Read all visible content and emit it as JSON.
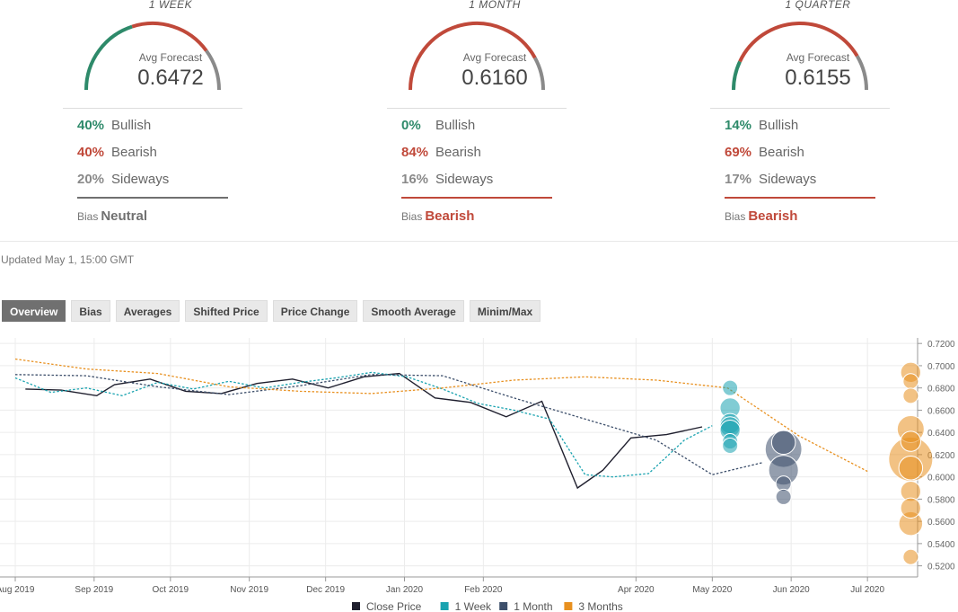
{
  "panels": [
    {
      "title": "1 WEEK",
      "avg_label": "Avg Forecast",
      "avg_value": "0.6472",
      "bullish_pct": "40%",
      "bullish_label": "Bullish",
      "bearish_pct": "40%",
      "bearish_label": "Bearish",
      "sideways_pct": "20%",
      "sideways_label": "Sideways",
      "bias_label": "Bias",
      "bias_value": "Neutral",
      "bias_color": "#707070",
      "gauge": {
        "bullish": 0.4,
        "bearish": 0.4,
        "sideways": 0.2
      }
    },
    {
      "title": "1 MONTH",
      "avg_label": "Avg Forecast",
      "avg_value": "0.6160",
      "bullish_pct": "0%",
      "bullish_label": "Bullish",
      "bearish_pct": "84%",
      "bearish_label": "Bearish",
      "sideways_pct": "16%",
      "sideways_label": "Sideways",
      "bias_label": "Bias",
      "bias_value": "Bearish",
      "bias_color": "#c0493a",
      "gauge": {
        "bullish": 0.0,
        "bearish": 0.84,
        "sideways": 0.16
      }
    },
    {
      "title": "1 QUARTER",
      "avg_label": "Avg Forecast",
      "avg_value": "0.6155",
      "bullish_pct": "14%",
      "bullish_label": "Bullish",
      "bearish_pct": "69%",
      "bearish_label": "Bearish",
      "sideways_pct": "17%",
      "sideways_label": "Sideways",
      "bias_label": "Bias",
      "bias_value": "Bearish",
      "bias_color": "#c0493a",
      "gauge": {
        "bullish": 0.14,
        "bearish": 0.69,
        "sideways": 0.17
      }
    }
  ],
  "colors": {
    "bullish": "#2e8a6a",
    "bearish": "#c0493a",
    "sideways": "#8a8a8a"
  },
  "updated": "Updated May 1, 15:00 GMT",
  "tabs": [
    "Overview",
    "Bias",
    "Averages",
    "Shifted Price",
    "Price Change",
    "Smooth Average",
    "Minim/Max"
  ],
  "active_tab": "Overview",
  "chart_data": {
    "type": "line",
    "title": "",
    "xlabel": "",
    "ylabel": "",
    "ylim": [
      0.51,
      0.725
    ],
    "xlim": [
      "2019-08-01",
      "2020-08-01"
    ],
    "y_ticks": [
      "0.5200",
      "0.5400",
      "0.5600",
      "0.5800",
      "0.6000",
      "0.6200",
      "0.6400",
      "0.6600",
      "0.6800",
      "0.7000",
      "0.7200"
    ],
    "x_ticks": [
      {
        "date": "2019-08-01",
        "label": "Aug 2019"
      },
      {
        "date": "2019-09-01",
        "label": "Sep 2019"
      },
      {
        "date": "2019-10-01",
        "label": "Oct 2019"
      },
      {
        "date": "2019-11-01",
        "label": "Nov 2019"
      },
      {
        "date": "2019-12-01",
        "label": "Dec 2019"
      },
      {
        "date": "2020-01-01",
        "label": "Jan 2020"
      },
      {
        "date": "2020-02-01",
        "label": "Feb 2020"
      },
      {
        "date": "2020-04-01",
        "label": "Apr 2020"
      },
      {
        "date": "2020-05-01",
        "label": "May 2020"
      },
      {
        "date": "2020-06-01",
        "label": "Jun 2020"
      },
      {
        "date": "2020-07-01",
        "label": "Jul 2020"
      }
    ],
    "grid": true,
    "legend_position": "bottom",
    "series": [
      {
        "name": "Close Price",
        "color": "#1f1f2e",
        "dashed": false,
        "x": [
          "2019-08-05",
          "2019-08-19",
          "2019-09-02",
          "2019-09-09",
          "2019-09-23",
          "2019-10-07",
          "2019-10-21",
          "2019-11-04",
          "2019-11-18",
          "2019-12-02",
          "2019-12-16",
          "2019-12-30",
          "2020-01-13",
          "2020-01-27",
          "2020-02-10",
          "2020-02-24",
          "2020-03-09",
          "2020-03-19",
          "2020-03-30",
          "2020-04-13",
          "2020-04-27"
        ],
        "y": [
          0.679,
          0.678,
          0.673,
          0.683,
          0.688,
          0.677,
          0.675,
          0.684,
          0.688,
          0.68,
          0.69,
          0.693,
          0.671,
          0.667,
          0.654,
          0.668,
          0.59,
          0.606,
          0.635,
          0.638,
          0.645
        ]
      },
      {
        "name": "1 Week",
        "color": "#1aa3b0",
        "dashed": true,
        "x": [
          "2019-08-01",
          "2019-08-15",
          "2019-08-29",
          "2019-09-12",
          "2019-09-26",
          "2019-10-10",
          "2019-10-24",
          "2019-11-07",
          "2019-11-21",
          "2019-12-05",
          "2019-12-19",
          "2020-01-02",
          "2020-01-16",
          "2020-01-30",
          "2020-02-13",
          "2020-02-27",
          "2020-03-12",
          "2020-03-23",
          "2020-04-06",
          "2020-04-20",
          "2020-05-01"
        ],
        "y": [
          0.689,
          0.676,
          0.68,
          0.673,
          0.685,
          0.679,
          0.686,
          0.68,
          0.685,
          0.689,
          0.694,
          0.69,
          0.679,
          0.666,
          0.66,
          0.652,
          0.602,
          0.6,
          0.603,
          0.633,
          0.646
        ]
      },
      {
        "name": "1 Month",
        "color": "#3d4f6b",
        "dashed": true,
        "x": [
          "2019-08-01",
          "2019-08-29",
          "2019-09-26",
          "2019-10-24",
          "2019-11-21",
          "2019-12-19",
          "2020-01-16",
          "2020-02-13",
          "2020-03-12",
          "2020-04-09",
          "2020-05-01",
          "2020-05-21"
        ],
        "y": [
          0.692,
          0.691,
          0.681,
          0.674,
          0.682,
          0.692,
          0.691,
          0.671,
          0.652,
          0.633,
          0.602,
          0.613
        ]
      },
      {
        "name": "3 Months",
        "color": "#e8901f",
        "dashed": true,
        "x": [
          "2019-08-01",
          "2019-08-29",
          "2019-09-26",
          "2019-10-24",
          "2019-11-21",
          "2019-12-19",
          "2020-01-16",
          "2020-02-13",
          "2020-03-12",
          "2020-04-09",
          "2020-05-07",
          "2020-06-04",
          "2020-07-01"
        ],
        "y": [
          0.706,
          0.697,
          0.693,
          0.681,
          0.677,
          0.675,
          0.68,
          0.687,
          0.69,
          0.687,
          0.68,
          0.637,
          0.605
        ]
      }
    ],
    "forecast_dots": [
      {
        "series": "1 Week",
        "date": "2020-05-08",
        "values": [
          0.68,
          0.662,
          0.648,
          0.645,
          0.642,
          0.632,
          0.628
        ],
        "sizes": [
          1,
          2,
          2,
          2,
          2,
          1,
          1
        ]
      },
      {
        "series": "1 Month",
        "date": "2020-05-29",
        "values": [
          0.625,
          0.631,
          0.606,
          0.594,
          0.582
        ],
        "sizes": [
          8,
          3,
          5,
          1,
          1
        ]
      },
      {
        "series": "3 Months",
        "date": "2020-07-18",
        "values": [
          0.694,
          0.686,
          0.673,
          0.643,
          0.632,
          0.616,
          0.608,
          0.587,
          0.572,
          0.558,
          0.528
        ],
        "sizes": [
          2,
          1,
          1,
          4,
          2,
          12,
          3,
          2,
          2,
          3,
          1
        ]
      }
    ]
  }
}
